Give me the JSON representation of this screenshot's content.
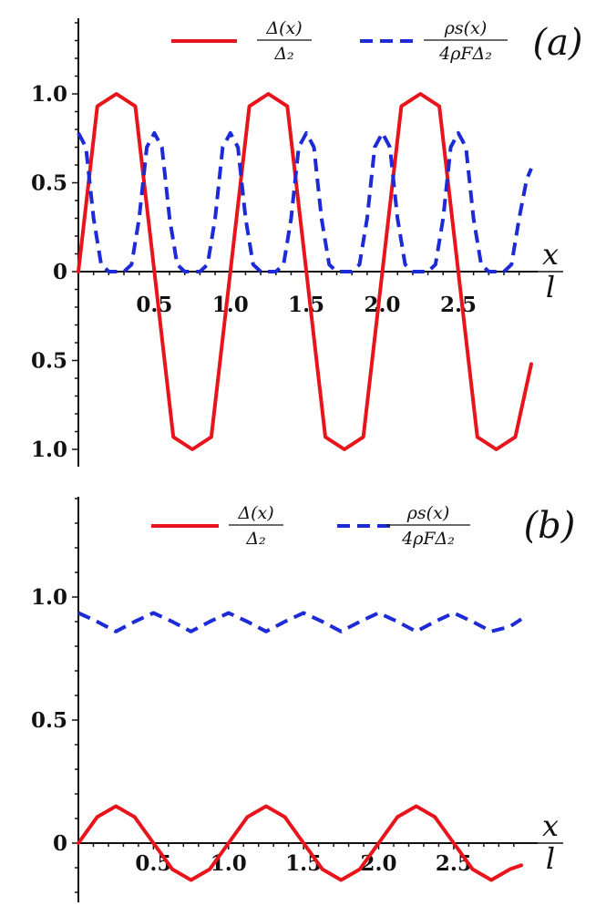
{
  "chart_data": [
    {
      "panel_label": "(a)",
      "type": "line",
      "xlabel": {
        "numerator": "x",
        "denominator": "l"
      },
      "xlim": [
        0,
        2.98
      ],
      "ylim": [
        -1.05,
        1.4
      ],
      "x_ticks": [
        "0.5",
        "1.0",
        "1.5",
        "2.0",
        "2.5"
      ],
      "y_ticks": [
        {
          "value": 1.0,
          "label": "1.0"
        },
        {
          "value": 0.5,
          "label": "0.5"
        },
        {
          "value": 0,
          "label": "0"
        },
        {
          "value": -0.5,
          "label": "0.5"
        },
        {
          "value": -1.0,
          "label": "1.0"
        }
      ],
      "legend": [
        {
          "label": "Δ(x)/Δ₂",
          "num": "Δ(x)",
          "den": "Δ₂",
          "color": "#e8141c",
          "dash": "solid"
        },
        {
          "label": "ρs(x)/4ρFΔ₂",
          "num": "ρs(x)",
          "den": "4ρFΔ₂",
          "color": "#1c2bd6",
          "dash": "dashed"
        }
      ],
      "series": [
        {
          "x": [
            0,
            0.125,
            0.25,
            0.375,
            0.5,
            0.625,
            0.75,
            0.875,
            1.0,
            1.125,
            1.25,
            1.375,
            1.5,
            1.625,
            1.75,
            1.875,
            2.0,
            2.125,
            2.25,
            2.375,
            2.5,
            2.625,
            2.75,
            2.875,
            2.98
          ],
          "y": [
            0,
            0.93,
            1.0,
            0.93,
            0,
            -0.93,
            -1.0,
            -0.93,
            0,
            0.93,
            1.0,
            0.93,
            0,
            -0.93,
            -1.0,
            -0.93,
            0,
            0.93,
            1.0,
            0.93,
            0,
            -0.93,
            -1.0,
            -0.93,
            -0.52
          ]
        },
        {
          "x": [
            0,
            0.05,
            0.1,
            0.15,
            0.2,
            0.25,
            0.3,
            0.35,
            0.4,
            0.45,
            0.5,
            0.55,
            0.6,
            0.65,
            0.7,
            0.75,
            0.8,
            0.85,
            0.9,
            0.95,
            1.0,
            1.05,
            1.1,
            1.15,
            1.2,
            1.25,
            1.3,
            1.35,
            1.4,
            1.45,
            1.5,
            1.55,
            1.6,
            1.65,
            1.7,
            1.75,
            1.8,
            1.85,
            1.9,
            1.95,
            2.0,
            2.05,
            2.1,
            2.15,
            2.2,
            2.25,
            2.3,
            2.35,
            2.4,
            2.45,
            2.5,
            2.55,
            2.6,
            2.65,
            2.7,
            2.75,
            2.8,
            2.85,
            2.9,
            2.95,
            2.98
          ],
          "y": [
            0.78,
            0.7,
            0.3,
            0.04,
            0.0,
            0.0,
            0.0,
            0.04,
            0.3,
            0.7,
            0.78,
            0.7,
            0.3,
            0.04,
            0.0,
            0.0,
            0.0,
            0.04,
            0.3,
            0.7,
            0.78,
            0.7,
            0.3,
            0.04,
            0.0,
            0.0,
            0.0,
            0.04,
            0.3,
            0.7,
            0.78,
            0.7,
            0.3,
            0.04,
            0.0,
            0.0,
            0.0,
            0.04,
            0.3,
            0.7,
            0.78,
            0.7,
            0.3,
            0.04,
            0.0,
            0.0,
            0.0,
            0.04,
            0.3,
            0.7,
            0.78,
            0.7,
            0.3,
            0.04,
            0.0,
            0.0,
            0.0,
            0.04,
            0.3,
            0.52,
            0.58
          ]
        }
      ]
    },
    {
      "panel_label": "(b)",
      "type": "line",
      "xlabel": {
        "numerator": "x",
        "denominator": "l"
      },
      "xlim": [
        0,
        2.98
      ],
      "ylim": [
        -0.2,
        1.4
      ],
      "x_ticks": [
        "0.5",
        "1.0",
        "1.5",
        "2.0",
        "2.5"
      ],
      "y_ticks": [
        {
          "value": 1.0,
          "label": "1.0"
        },
        {
          "value": 0.5,
          "label": "0.5"
        },
        {
          "value": 0,
          "label": "0"
        }
      ],
      "legend": [
        {
          "label": "Δ(x)/Δ₂",
          "num": "Δ(x)",
          "den": "Δ₂",
          "color": "#e8141c",
          "dash": "solid"
        },
        {
          "label": "ρs(x)/4ρFΔ₂",
          "num": "ρs(x)",
          "den": "4ρFΔ₂",
          "color": "#1c2bd6",
          "dash": "dashed"
        }
      ],
      "series": [
        {
          "x": [
            0,
            0.125,
            0.25,
            0.375,
            0.5,
            0.625,
            0.75,
            0.875,
            1.0,
            1.125,
            1.25,
            1.375,
            1.5,
            1.625,
            1.75,
            1.875,
            2.0,
            2.125,
            2.25,
            2.375,
            2.5,
            2.625,
            2.75,
            2.875,
            2.95
          ],
          "y": [
            0,
            0.106,
            0.15,
            0.106,
            0,
            -0.106,
            -0.15,
            -0.106,
            0,
            0.106,
            0.15,
            0.106,
            0,
            -0.106,
            -0.15,
            -0.106,
            0,
            0.106,
            0.15,
            0.106,
            0,
            -0.106,
            -0.15,
            -0.106,
            -0.09
          ]
        },
        {
          "x": [
            0,
            0.125,
            0.25,
            0.375,
            0.5,
            0.625,
            0.75,
            0.875,
            1.0,
            1.125,
            1.25,
            1.375,
            1.5,
            1.625,
            1.75,
            1.875,
            2.0,
            2.125,
            2.25,
            2.375,
            2.5,
            2.625,
            2.75,
            2.875,
            2.95
          ],
          "y": [
            0.935,
            0.9,
            0.86,
            0.9,
            0.935,
            0.9,
            0.86,
            0.9,
            0.935,
            0.9,
            0.86,
            0.9,
            0.935,
            0.9,
            0.86,
            0.9,
            0.935,
            0.9,
            0.86,
            0.9,
            0.935,
            0.9,
            0.86,
            0.88,
            0.91
          ]
        }
      ]
    }
  ]
}
